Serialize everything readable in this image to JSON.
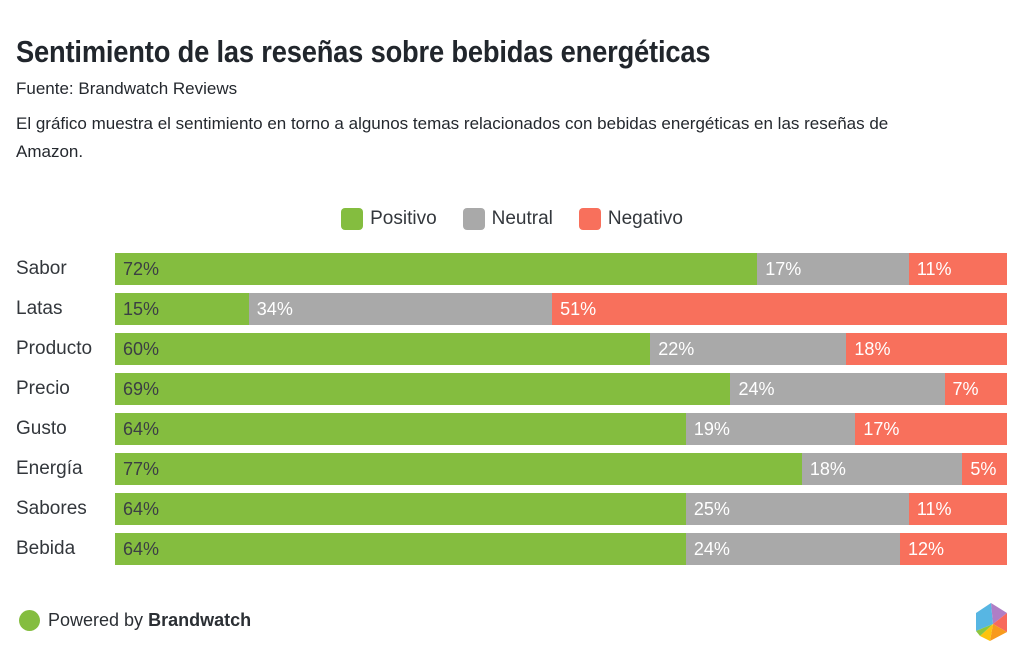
{
  "header": {
    "title": "Sentimiento de las reseñas sobre bebidas energéticas",
    "source": "Fuente: Brandwatch Reviews",
    "description": "El gráfico muestra el sentimiento en torno a algunos temas relacionados con bebidas energéticas en las reseñas de Amazon."
  },
  "legend": [
    {
      "label": "Positivo",
      "color": "#84bd3f"
    },
    {
      "label": "Neutral",
      "color": "#a9a9a9"
    },
    {
      "label": "Negativo",
      "color": "#f8705c"
    }
  ],
  "chart_data": {
    "type": "bar",
    "orientation": "horizontal",
    "stacked": true,
    "unit": "%",
    "xlim": [
      0,
      100
    ],
    "grid": false,
    "legend_position": "top-center",
    "value_label_format": "{v}%",
    "categories": [
      "Sabor",
      "Latas",
      "Producto",
      "Precio",
      "Gusto",
      "Energía",
      "Sabores",
      "Bebida"
    ],
    "series": [
      {
        "name": "Positivo",
        "color": "#84bd3f",
        "values": [
          72,
          15,
          60,
          69,
          64,
          77,
          64,
          64
        ]
      },
      {
        "name": "Neutral",
        "color": "#a9a9a9",
        "values": [
          17,
          34,
          22,
          24,
          19,
          18,
          25,
          24
        ]
      },
      {
        "name": "Negativo",
        "color": "#f8705c",
        "values": [
          11,
          51,
          18,
          7,
          17,
          5,
          11,
          12
        ]
      }
    ]
  },
  "footer": {
    "powered_by_prefix": "Powered by",
    "brand": "Brandwatch",
    "dot_color": "#84bd3f",
    "logo_colors": {
      "blue": "#57b6e3",
      "purple": "#af7ec6",
      "red": "#f8695c",
      "orange": "#f89a1c",
      "yellow": "#fdc30d",
      "green": "#8dc63f"
    }
  }
}
